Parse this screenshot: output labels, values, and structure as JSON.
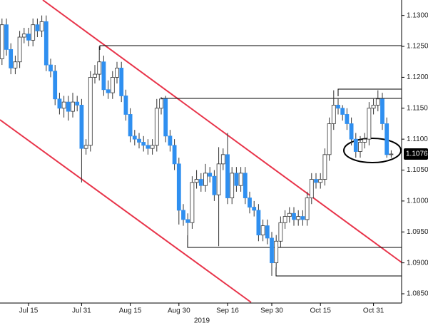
{
  "chart_data": {
    "type": "candlestick",
    "xlabel": "2019",
    "categories": [
      null,
      null,
      null,
      null,
      null,
      null,
      "Jul 15",
      null,
      null,
      null,
      null,
      null,
      null,
      null,
      null,
      null,
      null,
      null,
      "Jul 31",
      null,
      null,
      null,
      null,
      null,
      null,
      null,
      null,
      null,
      null,
      "Aug 15",
      null,
      null,
      null,
      null,
      null,
      null,
      null,
      null,
      null,
      null,
      "Aug 30",
      null,
      null,
      null,
      null,
      null,
      null,
      null,
      null,
      null,
      null,
      "Sep 16",
      null,
      null,
      null,
      null,
      null,
      null,
      null,
      null,
      null,
      "Sep 30",
      null,
      null,
      null,
      null,
      null,
      null,
      null,
      null,
      null,
      null,
      "Oct 15",
      null,
      null,
      null,
      null,
      null,
      null,
      null,
      null,
      null,
      null,
      null,
      "Oct 31",
      null,
      null,
      null,
      null
    ],
    "open": [
      1.123,
      1.1285,
      1.1245,
      1.1215,
      1.1225,
      1.1265,
      1.127,
      1.126,
      1.1285,
      1.1275,
      1.129,
      1.122,
      1.121,
      1.1165,
      1.115,
      1.116,
      1.1145,
      1.116,
      1.1155,
      1.1085,
      1.109,
      1.12,
      1.1205,
      1.1225,
      1.118,
      1.1175,
      1.12,
      1.1215,
      1.117,
      1.114,
      1.1105,
      1.11,
      1.1095,
      1.109,
      1.1085,
      1.109,
      1.115,
      1.1165,
      1.1105,
      1.109,
      1.106,
      1.0985,
      1.097,
      1.0965,
      1.103,
      1.1035,
      1.1025,
      1.1045,
      1.104,
      1.101,
      1.106,
      1.1075,
      1.1005,
      1.1045,
      1.1025,
      1.1045,
      1.1005,
      1.099,
      1.0985,
      1.0945,
      1.096,
      1.094,
      1.09,
      1.0935,
      1.0965,
      1.0975,
      1.098,
      1.097,
      1.0975,
      1.097,
      1.1005,
      1.1035,
      1.103,
      1.1035,
      1.1075,
      1.1125,
      1.1155,
      1.115,
      1.114,
      1.1125,
      1.11,
      1.108,
      1.1095,
      1.11,
      1.115,
      1.1155,
      1.1165,
      1.1125,
      1.1075
    ],
    "high": [
      1.1295,
      1.1295,
      1.1255,
      1.1235,
      1.1275,
      1.128,
      1.128,
      1.1295,
      1.1295,
      1.13,
      1.13,
      1.123,
      1.122,
      1.1175,
      1.117,
      1.117,
      1.1175,
      1.117,
      1.1165,
      1.11,
      1.121,
      1.122,
      1.125,
      1.1235,
      1.1195,
      1.121,
      1.1225,
      1.1225,
      1.118,
      1.115,
      1.1115,
      1.111,
      1.1105,
      1.11,
      1.11,
      1.1165,
      1.1168,
      1.117,
      1.1115,
      1.11,
      1.107,
      1.0995,
      1.098,
      1.104,
      1.105,
      1.1045,
      1.106,
      1.1055,
      1.105,
      1.1087,
      1.1085,
      1.111,
      1.1055,
      1.1055,
      1.1055,
      1.1055,
      1.1015,
      1.1,
      1.0995,
      1.097,
      1.097,
      1.095,
      1.0945,
      1.0975,
      1.0985,
      1.099,
      1.099,
      1.0985,
      1.0985,
      1.1015,
      1.1045,
      1.1045,
      1.1045,
      1.1085,
      1.1135,
      1.1179,
      1.1165,
      1.1155,
      1.115,
      1.1135,
      1.111,
      1.1105,
      1.111,
      1.116,
      1.1165,
      1.1179,
      1.1175,
      1.1135,
      1.1082
    ],
    "low": [
      1.122,
      1.1235,
      1.1205,
      1.1205,
      1.1215,
      1.1255,
      1.125,
      1.125,
      1.1265,
      1.1265,
      1.121,
      1.12,
      1.1155,
      1.114,
      1.1135,
      1.113,
      1.1135,
      1.1145,
      1.103,
      1.1075,
      1.108,
      1.119,
      1.1195,
      1.117,
      1.1165,
      1.1165,
      1.119,
      1.116,
      1.113,
      1.1095,
      1.109,
      1.1085,
      1.108,
      1.1075,
      1.1075,
      1.108,
      1.114,
      1.1095,
      1.108,
      1.105,
      1.0962,
      1.096,
      1.093,
      1.0955,
      1.102,
      1.1015,
      1.1015,
      1.103,
      1.1,
      1.0927,
      1.105,
      1.0995,
      1.0995,
      1.1015,
      1.1015,
      1.0995,
      1.098,
      1.0975,
      1.0935,
      1.0935,
      1.093,
      1.0879,
      1.089,
      1.0925,
      1.0955,
      1.0965,
      1.096,
      1.096,
      1.096,
      1.096,
      1.0995,
      1.102,
      1.102,
      1.1025,
      1.1065,
      1.1115,
      1.114,
      1.113,
      1.1115,
      1.109,
      1.107,
      1.107,
      1.1085,
      1.109,
      1.114,
      1.1145,
      1.1115,
      1.107,
      1.107
    ],
    "close": [
      1.1285,
      1.1245,
      1.1215,
      1.1225,
      1.1265,
      1.127,
      1.126,
      1.1285,
      1.1275,
      1.129,
      1.122,
      1.121,
      1.1165,
      1.115,
      1.116,
      1.1145,
      1.116,
      1.1155,
      1.1085,
      1.109,
      1.12,
      1.1205,
      1.1225,
      1.118,
      1.1175,
      1.12,
      1.1215,
      1.117,
      1.114,
      1.1105,
      1.11,
      1.1095,
      1.109,
      1.1085,
      1.109,
      1.115,
      1.1165,
      1.1105,
      1.109,
      1.106,
      1.0985,
      1.097,
      1.0965,
      1.103,
      1.1035,
      1.1025,
      1.1045,
      1.104,
      1.101,
      1.106,
      1.1075,
      1.1005,
      1.1045,
      1.1025,
      1.1045,
      1.1005,
      1.099,
      1.0985,
      1.0945,
      1.096,
      1.094,
      1.09,
      1.0935,
      1.0965,
      1.0975,
      1.098,
      1.097,
      1.0975,
      1.097,
      1.1005,
      1.1035,
      1.103,
      1.1035,
      1.1075,
      1.1125,
      1.1155,
      1.115,
      1.114,
      1.1125,
      1.11,
      1.108,
      1.1095,
      1.11,
      1.115,
      1.1155,
      1.1165,
      1.1125,
      1.1075,
      1.1076
    ],
    "up_color": "#ffffff",
    "down_color": "#2f8ff0",
    "ylim": [
      1.0835,
      1.1325
    ],
    "yticks": [
      {
        "value": 1.085,
        "label": "1.0850"
      },
      {
        "value": 1.09,
        "label": "1.0900"
      },
      {
        "value": 1.095,
        "label": "1.0950"
      },
      {
        "value": 1.1,
        "label": "1.1000"
      },
      {
        "value": 1.105,
        "label": "1.1050"
      },
      {
        "value": 1.11,
        "label": "1.1100"
      },
      {
        "value": 1.115,
        "label": "1.1150"
      },
      {
        "value": 1.12,
        "label": "1.1200"
      },
      {
        "value": 1.125,
        "label": "1.1250"
      },
      {
        "value": 1.13,
        "label": "1.1300"
      }
    ],
    "last_price": {
      "value": 1.1076,
      "label": "1.1076"
    }
  }
}
